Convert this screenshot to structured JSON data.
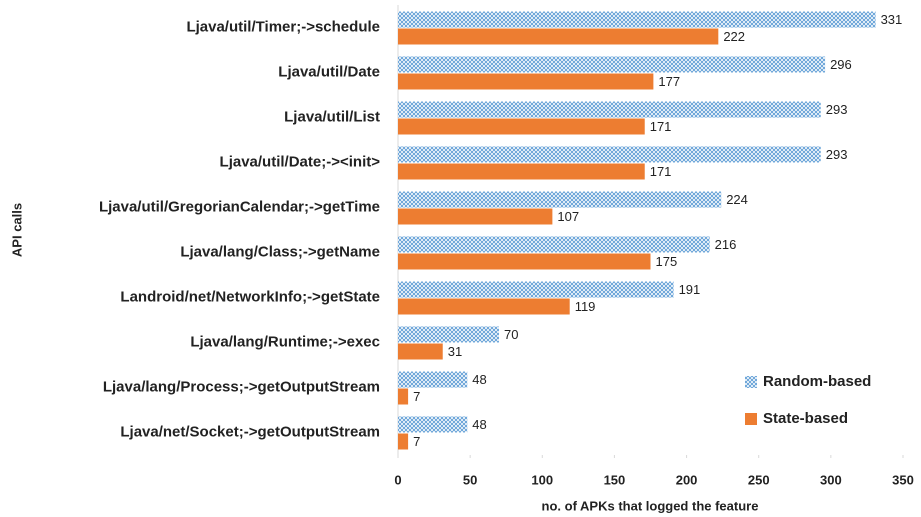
{
  "chart_data": {
    "type": "bar",
    "orientation": "horizontal",
    "x_label": "no. of APKs that logged the feature",
    "y_label": "API calls",
    "categories": [
      "Ljava/util/Timer;->schedule",
      "Ljava/util/Date",
      "Ljava/util/List",
      "Ljava/util/Date;-><init>",
      "Ljava/util/GregorianCalendar;->getTime",
      "Ljava/lang/Class;->getName",
      "Landroid/net/NetworkInfo;->getState",
      "Ljava/lang/Runtime;->exec",
      "Ljava/lang/Process;->getOutputStream",
      "Ljava/net/Socket;->getOutputStream"
    ],
    "series": [
      {
        "name": "Random-based",
        "color": "#5b9bd5",
        "pattern": "crosshatch",
        "values": [
          331,
          296,
          293,
          293,
          224,
          216,
          191,
          70,
          48,
          48
        ]
      },
      {
        "name": "State-based",
        "color": "#ed7d31",
        "values": [
          222,
          177,
          171,
          171,
          107,
          175,
          119,
          31,
          7,
          7
        ]
      }
    ],
    "xlim": [
      0,
      350
    ],
    "xticks": [
      0,
      50,
      100,
      150,
      200,
      250,
      300,
      350
    ],
    "legend": "lower right"
  }
}
